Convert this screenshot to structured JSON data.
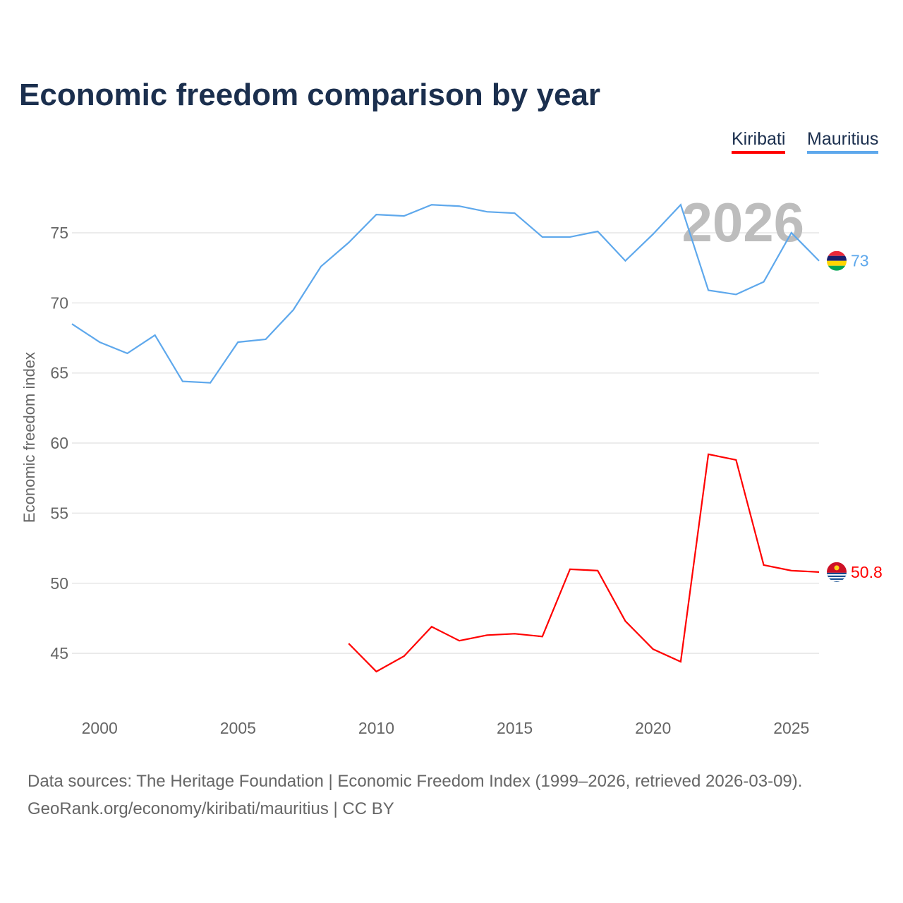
{
  "title": "Economic freedom comparison by year",
  "legend": [
    {
      "label": "Kiribati",
      "color": "#ff0000"
    },
    {
      "label": "Mauritius",
      "color": "#5ea8ec"
    }
  ],
  "source_line1": "Data sources: The Heritage Foundation | Economic Freedom Index (1999–2026, retrieved 2026-03-09).",
  "source_line2": "GeoRank.org/economy/kiribati/mauritius | CC BY",
  "chart_data": {
    "type": "line",
    "title": "Economic freedom comparison by year",
    "xlabel": "",
    "ylabel": "Economic freedom index",
    "watermark_year": "2026",
    "xlim": [
      1999,
      2026
    ],
    "ylim": [
      41,
      79
    ],
    "xticks": [
      2000,
      2005,
      2010,
      2015,
      2020,
      2025
    ],
    "yticks": [
      45,
      50,
      55,
      60,
      65,
      70,
      75
    ],
    "grid": true,
    "legend_position": "top-right",
    "series": [
      {
        "name": "Mauritius",
        "color": "#5ea8ec",
        "end_label": "73",
        "flag": "mauritius-flag",
        "x": [
          1999,
          2000,
          2001,
          2002,
          2003,
          2004,
          2005,
          2006,
          2007,
          2008,
          2009,
          2010,
          2011,
          2012,
          2013,
          2014,
          2015,
          2016,
          2017,
          2018,
          2019,
          2020,
          2021,
          2022,
          2023,
          2024,
          2025,
          2026
        ],
        "values": [
          68.5,
          67.2,
          66.4,
          67.7,
          64.4,
          64.3,
          67.2,
          67.4,
          69.5,
          72.6,
          74.3,
          76.3,
          76.2,
          77.0,
          76.9,
          76.5,
          76.4,
          74.7,
          74.7,
          75.1,
          73.0,
          74.9,
          77.0,
          70.9,
          70.6,
          71.5,
          75.0,
          73.0
        ]
      },
      {
        "name": "Kiribati",
        "color": "#ff0000",
        "end_label": "50.8",
        "flag": "kiribati-flag",
        "x": [
          2009,
          2010,
          2011,
          2012,
          2013,
          2014,
          2015,
          2016,
          2017,
          2018,
          2019,
          2020,
          2021,
          2022,
          2023,
          2024,
          2025,
          2026
        ],
        "values": [
          45.7,
          43.7,
          44.8,
          46.9,
          45.9,
          46.3,
          46.4,
          46.2,
          51.0,
          50.9,
          47.3,
          45.3,
          44.4,
          59.2,
          58.8,
          51.3,
          50.9,
          50.8
        ]
      }
    ]
  }
}
